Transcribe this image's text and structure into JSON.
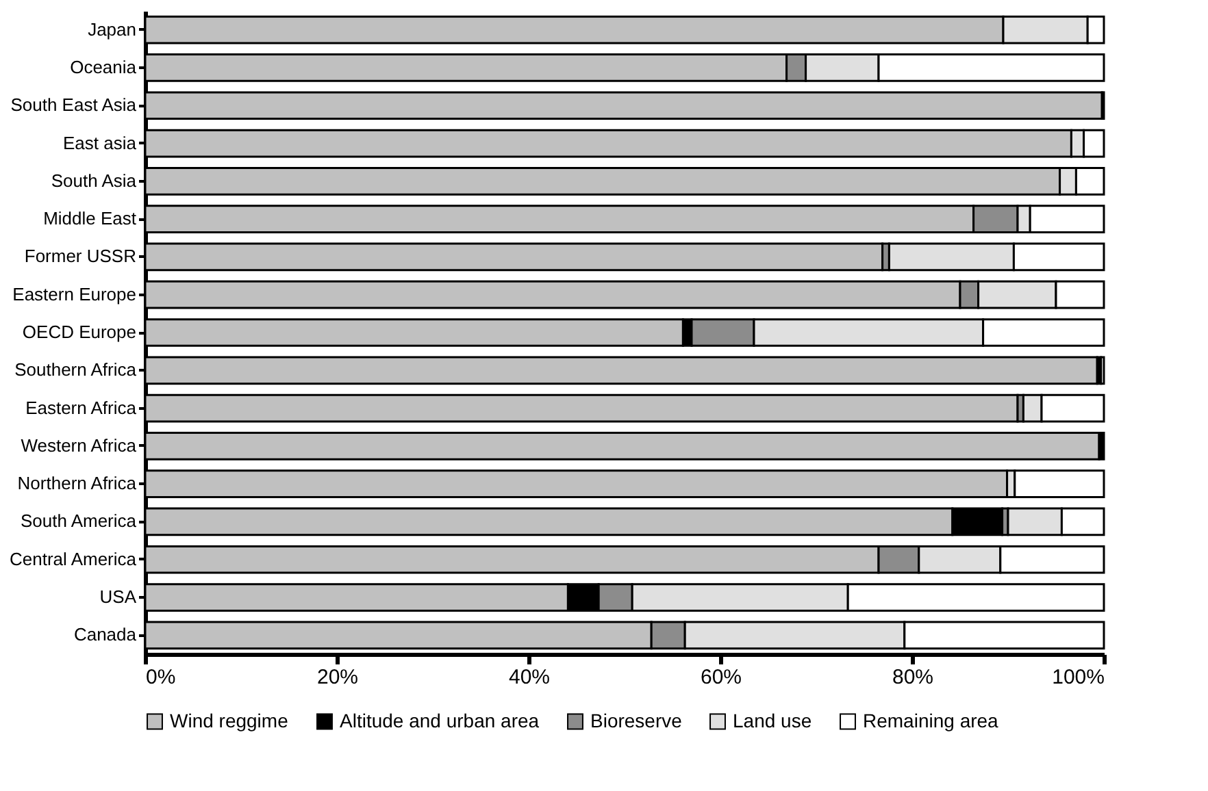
{
  "chart_data": {
    "type": "bar",
    "orientation": "horizontal",
    "stacked": true,
    "categories": [
      "Japan",
      "Oceania",
      "South East Asia",
      "East asia",
      "South Asia",
      "Middle East",
      "Former USSR",
      "Eastern Europe",
      "OECD Europe",
      "Southern Africa",
      "Eastern Africa",
      "Western Africa",
      "Northern Africa",
      "South America",
      "Central America",
      "USA",
      "Canada"
    ],
    "series": [
      {
        "name": "Wind reggime",
        "color": "#c0c0c0",
        "values": [
          89.5,
          66.9,
          99.8,
          96.6,
          95.4,
          86.4,
          76.9,
          85.0,
          56.1,
          99.3,
          91.0,
          99.5,
          89.9,
          84.2,
          76.5,
          44.1,
          52.8
        ]
      },
      {
        "name": "Altitude and urban area",
        "color": "#000000",
        "values": [
          null,
          null,
          0.2,
          null,
          null,
          null,
          null,
          null,
          0.9,
          0.4,
          null,
          0.5,
          null,
          5.2,
          null,
          3.2,
          null
        ]
      },
      {
        "name": "Bioreserve",
        "color": "#8c8c8c",
        "values": [
          null,
          2.0,
          null,
          null,
          null,
          4.6,
          0.7,
          1.9,
          6.5,
          null,
          0.6,
          null,
          null,
          0.6,
          4.2,
          3.5,
          3.5
        ]
      },
      {
        "name": "Land use",
        "color": "#e0e0e0",
        "values": [
          8.8,
          7.6,
          null,
          1.3,
          1.7,
          1.3,
          13.0,
          8.1,
          23.9,
          null,
          1.9,
          null,
          0.8,
          5.6,
          8.5,
          22.5,
          22.9
        ]
      },
      {
        "name": "Remaining area",
        "color": "#ffffff",
        "values": [
          1.7,
          23.5,
          null,
          2.1,
          2.9,
          7.7,
          9.4,
          5.0,
          12.6,
          0.3,
          6.5,
          null,
          9.3,
          4.4,
          10.8,
          26.7,
          20.8
        ]
      }
    ],
    "xlim": [
      0,
      100
    ],
    "xticks": [
      {
        "value": 0,
        "label": "0%"
      },
      {
        "value": 20,
        "label": "20%"
      },
      {
        "value": 40,
        "label": "40%"
      },
      {
        "value": 60,
        "label": "60%"
      },
      {
        "value": 80,
        "label": "80%"
      },
      {
        "value": 100,
        "label": "100%"
      }
    ],
    "grid": false,
    "legend": "bottom"
  }
}
